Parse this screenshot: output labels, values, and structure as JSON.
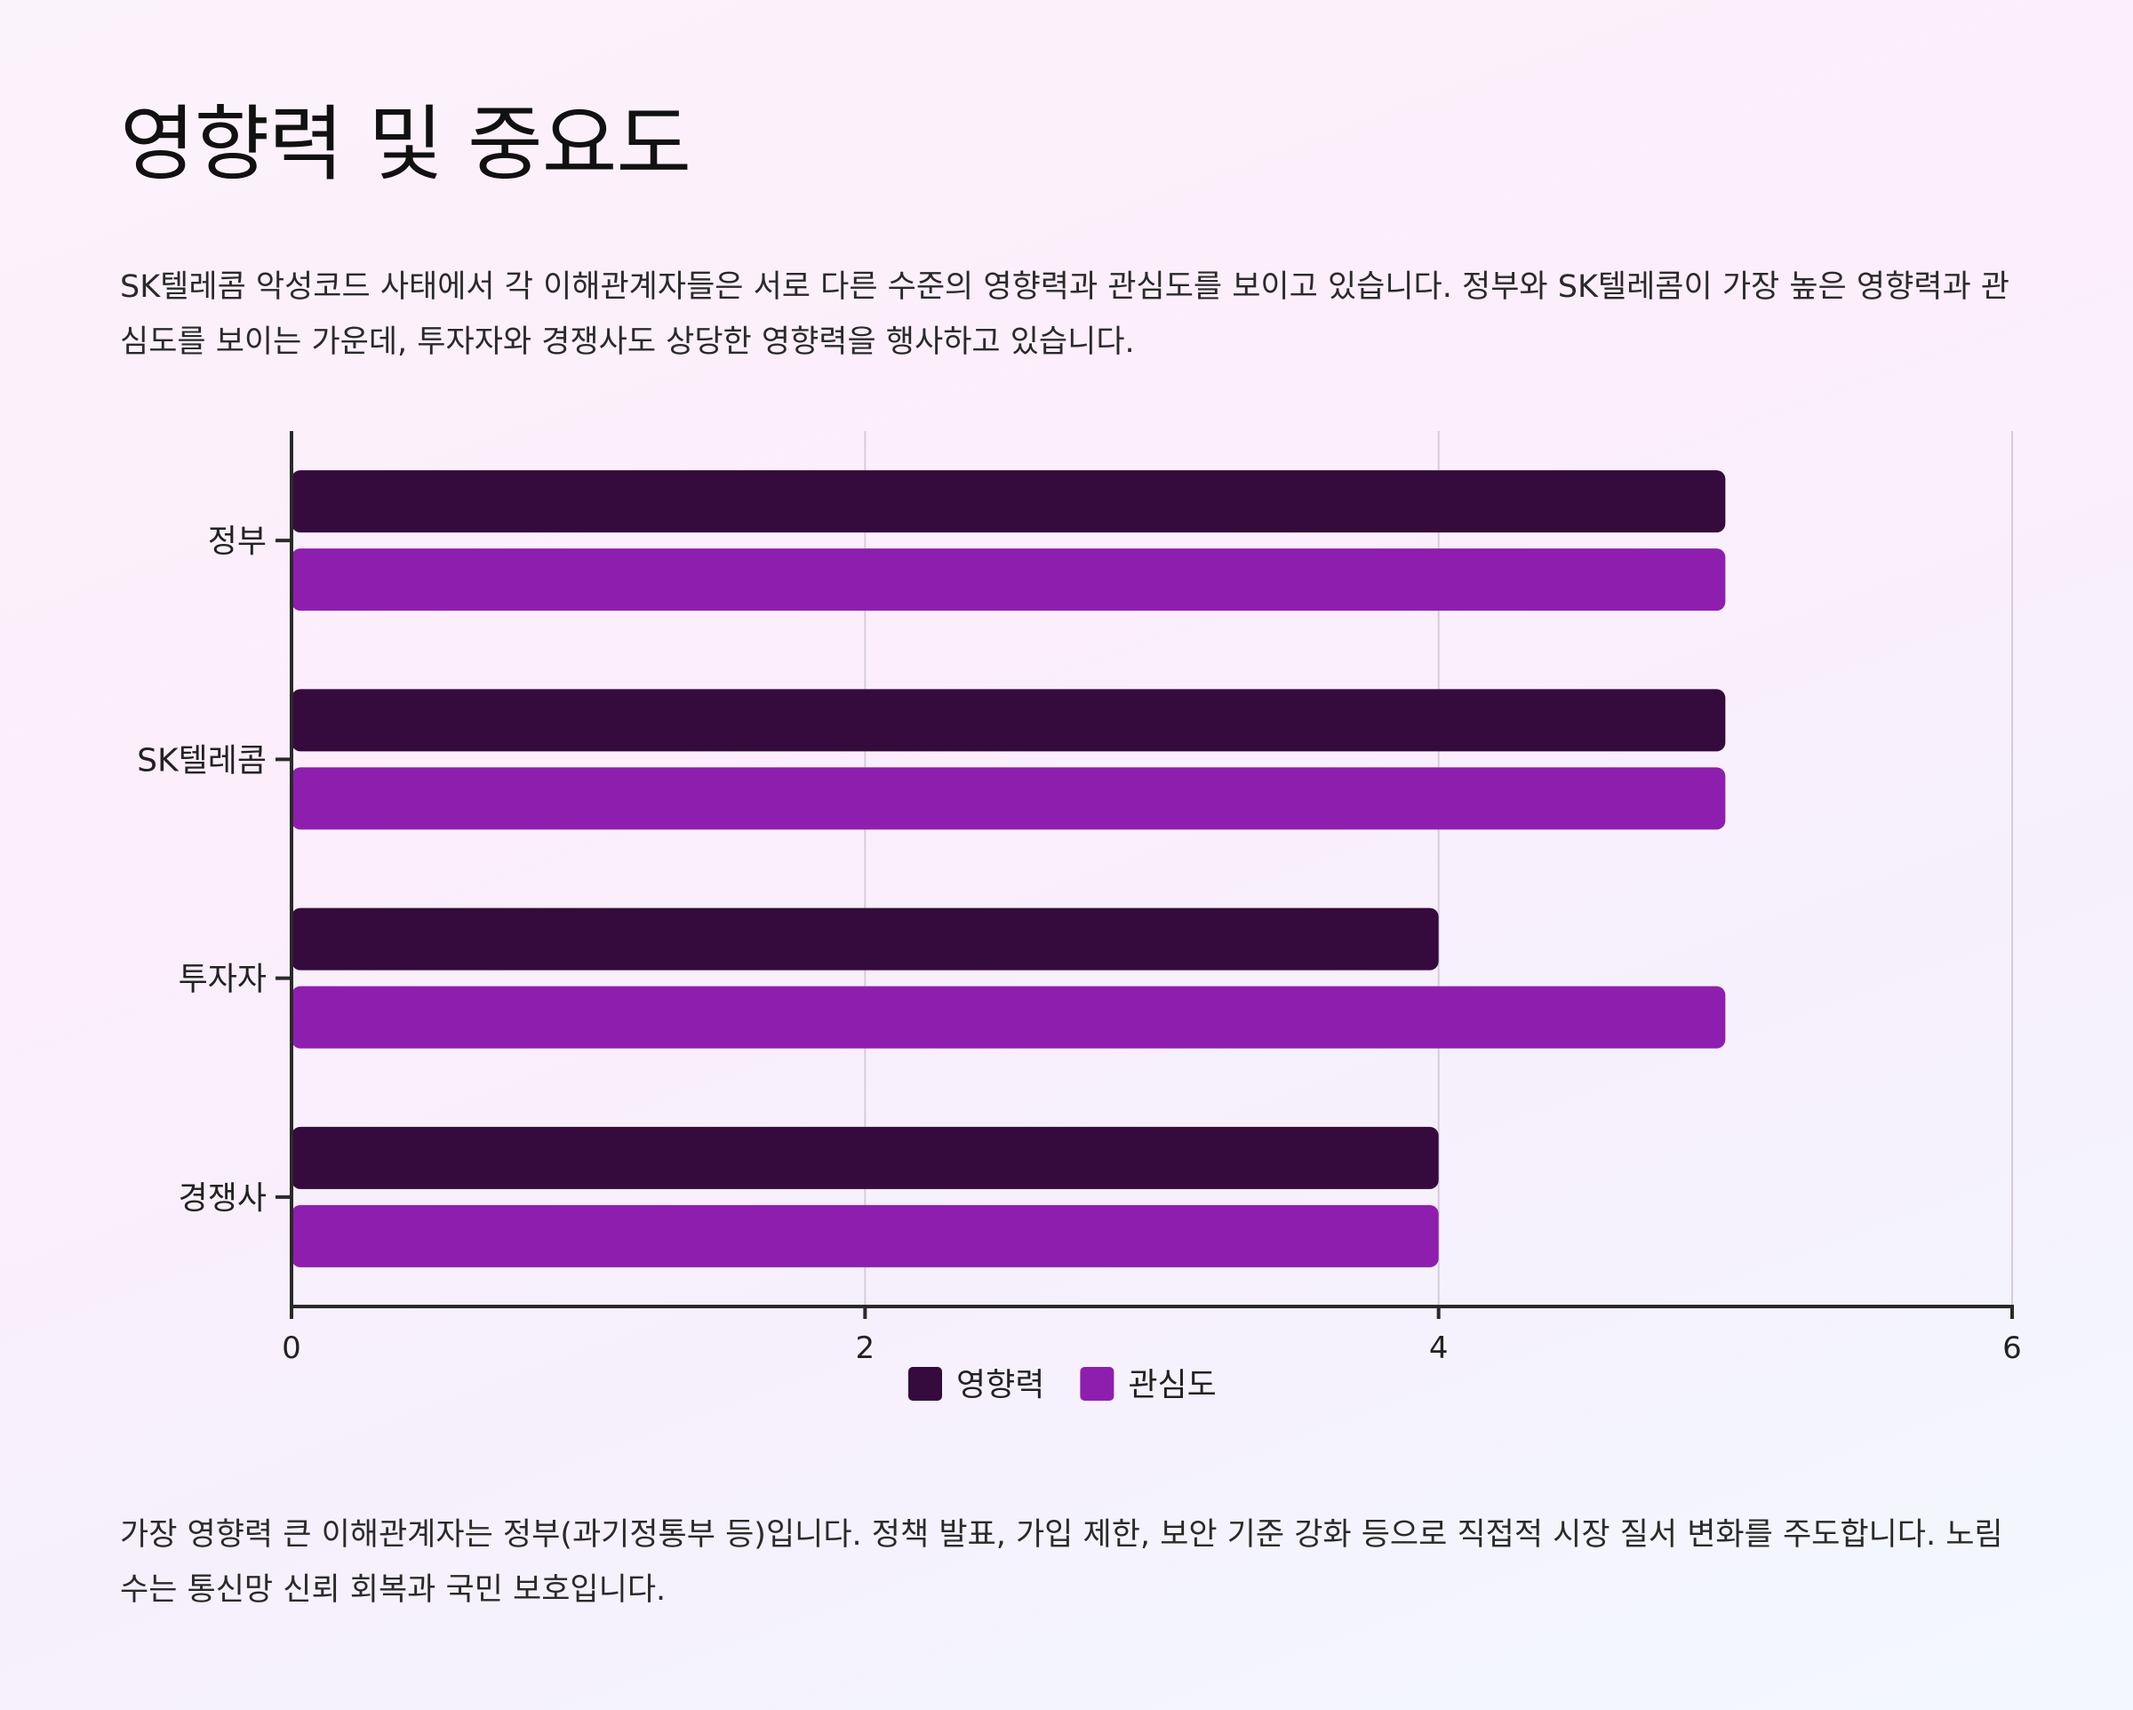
{
  "page": {
    "title": "영향력 및 중요도",
    "intro": "SK텔레콤 악성코드 사태에서 각 이해관계자들은 서로 다른 수준의 영향력과 관심도를 보이고 있습니다. 정부와 SK텔레콤이 가장 높은 영향력과 관심도를 보이는 가운데, 투자자와 경쟁사도 상당한 영향력을 행사하고 있습니다.",
    "outro": "가장 영향력 큰 이해관계자는 정부(과기정통부 등)입니다. 정책 발표, 가입 제한, 보안 기준 강화 등으로 직접적 시장 질서 변화를 주도합니다. 노림수는 통신망 신뢰 회복과 국민 보호입니다."
  },
  "chart_data": {
    "type": "bar",
    "orientation": "horizontal",
    "categories": [
      "정부",
      "SK텔레콤",
      "투자자",
      "경쟁사"
    ],
    "series": [
      {
        "name": "영향력",
        "values": [
          5,
          5,
          4,
          4
        ],
        "color": "#350a3d"
      },
      {
        "name": "관심도",
        "values": [
          5,
          5,
          5,
          4
        ],
        "color": "#8e1fae"
      }
    ],
    "xlim": [
      0,
      6
    ],
    "xticks": [
      "0",
      "2",
      "4",
      "6"
    ],
    "grid": true,
    "legend": "bottom-center"
  }
}
